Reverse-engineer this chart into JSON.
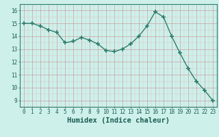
{
  "x": [
    0,
    1,
    2,
    3,
    4,
    5,
    6,
    7,
    8,
    9,
    10,
    11,
    12,
    13,
    14,
    15,
    16,
    17,
    18,
    19,
    20,
    21,
    22,
    23
  ],
  "y": [
    15.0,
    15.0,
    14.8,
    14.5,
    14.3,
    13.5,
    13.6,
    13.9,
    13.7,
    13.4,
    12.9,
    12.8,
    13.0,
    13.4,
    14.0,
    14.8,
    15.9,
    15.5,
    14.0,
    12.7,
    11.5,
    10.5,
    9.8,
    9.0
  ],
  "line_color": "#2e7d6e",
  "marker": "+",
  "marker_size": 4,
  "marker_linewidth": 1.2,
  "line_width": 1.0,
  "bg_color": "#cef0ea",
  "grid_color_major": "#c8a0a0",
  "grid_color_minor": "#d8c0c0",
  "xlabel": "Humidex (Indice chaleur)",
  "xlabel_fontsize": 7.5,
  "yticks": [
    9,
    10,
    11,
    12,
    13,
    14,
    15,
    16
  ],
  "xticks": [
    0,
    1,
    2,
    3,
    4,
    5,
    6,
    7,
    8,
    9,
    10,
    11,
    12,
    13,
    14,
    15,
    16,
    17,
    18,
    19,
    20,
    21,
    22,
    23
  ],
  "ylim": [
    8.5,
    16.5
  ],
  "xlim": [
    -0.5,
    23.5
  ],
  "tick_fontsize": 5.5,
  "label_color": "#1a5c52",
  "spine_color": "#2e7d6e"
}
